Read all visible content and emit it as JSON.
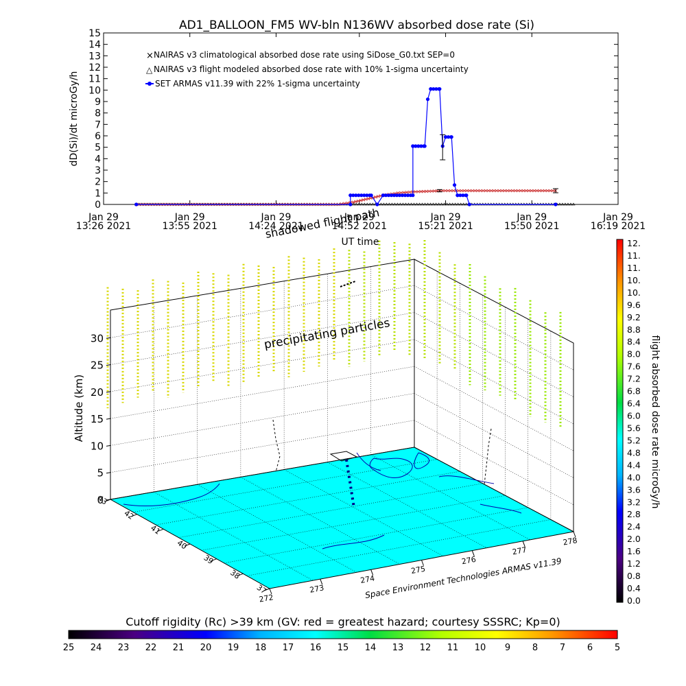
{
  "chart_data": [
    {
      "type": "line",
      "title": "AD1_BALLOON_FM5 WV-bln N136WV absorbed dose rate (Si)",
      "xlabel": "UT time",
      "ylabel": "dD(Si)/dt microGy/h",
      "ylim": [
        0,
        15
      ],
      "yticks": [
        "0",
        "1",
        "2",
        "3",
        "4",
        "5",
        "6",
        "7",
        "8",
        "9",
        "10",
        "11",
        "12",
        "13",
        "14",
        "15"
      ],
      "xlim": [
        "13:26",
        "16:19"
      ],
      "xticks": [
        {
          "t": "13:26",
          "date": "Jan 29",
          "label": "13:26 2021"
        },
        {
          "t": "13:55",
          "date": "Jan 29",
          "label": "13:55 2021"
        },
        {
          "t": "14:24",
          "date": "Jan 29",
          "label": "14:24 2021"
        },
        {
          "t": "14:52",
          "date": "Jan 29",
          "label": "14:52 2021"
        },
        {
          "t": "15:21",
          "date": "Jan 29",
          "label": "15:21 2021"
        },
        {
          "t": "15:50",
          "date": "Jan 29",
          "label": "15:50 2021"
        },
        {
          "t": "16:19",
          "date": "Jan 29",
          "label": "16:19 2021"
        }
      ],
      "legend_position": "top-left",
      "series": [
        {
          "name": "NAIRAS v3 climatological absorbed dose rate using SiDose_G0.txt SEP=0",
          "color": "#cc3333",
          "marker": "x",
          "points": [
            [
              "13:37",
              0.0
            ],
            [
              "14:45",
              0.0
            ],
            [
              "14:50",
              0.2
            ],
            [
              "14:55",
              0.5
            ],
            [
              "15:00",
              0.8
            ],
            [
              "15:05",
              1.0
            ],
            [
              "15:10",
              1.1
            ],
            [
              "15:20",
              1.2
            ],
            [
              "15:40",
              1.2
            ],
            [
              "15:58",
              1.2
            ]
          ],
          "error_bar": {
            "t": "15:19",
            "value": 1.2,
            "sigma": 0.1
          }
        },
        {
          "name": "NAIRAS v3 flight modeled absorbed dose rate with 10% 1-sigma uncertainty",
          "color": "#000000",
          "marker": "triangle",
          "points": [
            [
              "13:37",
              0.0
            ],
            [
              "16:04",
              0.0
            ]
          ]
        },
        {
          "name": "SET ARMAS v11.39 with 22% 1-sigma uncertainty",
          "color": "#0000ff",
          "marker": "dot",
          "points": [
            [
              "13:37",
              0.0
            ],
            [
              "14:49",
              0.0
            ],
            [
              "14:49",
              0.8
            ],
            [
              "14:56",
              0.8
            ],
            [
              "14:58",
              0.0
            ],
            [
              "15:00",
              0.8
            ],
            [
              "15:10",
              0.8
            ],
            [
              "15:10",
              5.1
            ],
            [
              "15:14",
              5.1
            ],
            [
              "15:15",
              9.2
            ],
            [
              "15:16",
              10.1
            ],
            [
              "15:19",
              10.1
            ],
            [
              "15:20",
              5.1
            ],
            [
              "15:21",
              5.9
            ],
            [
              "15:23",
              5.9
            ],
            [
              "15:24",
              1.7
            ],
            [
              "15:25",
              0.8
            ],
            [
              "15:28",
              0.8
            ],
            [
              "15:29",
              0.0
            ],
            [
              "15:58",
              0.0
            ]
          ],
          "error_bar": {
            "t": "15:20",
            "value": 5.0,
            "sigma": 1.1
          }
        }
      ],
      "annotation": "shadowed flight path"
    },
    {
      "type": "scatter",
      "ylabel": "Altitude (km)",
      "zlim": [
        0,
        35
      ],
      "zticks": [
        "0",
        "5",
        "10",
        "15",
        "20",
        "25",
        "30"
      ],
      "lat_ticks": [
        "43",
        "42",
        "41",
        "40",
        "39",
        "38",
        "37"
      ],
      "lon_ticks": [
        "272",
        "273",
        "274",
        "275",
        "276",
        "277",
        "278"
      ],
      "annotations": [
        "precipitating particles"
      ],
      "credit": "Space Environment Technologies ARMAS v11.39",
      "colorbar_right": {
        "label": "flight absorbed dose rate microGy/h",
        "ticks": [
          "0.0",
          "0.4",
          "0.8",
          "1.2",
          "1.6",
          "2.0",
          "2.4",
          "2.8",
          "3.2",
          "3.6",
          "4.0",
          "4.4",
          "4.8",
          "5.2",
          "5.6",
          "6.0",
          "6.4",
          "6.8",
          "7.2",
          "7.6",
          "8.0",
          "8.4",
          "8.8",
          "9.2",
          "9.6",
          "10.",
          "10.",
          "11.",
          "11.",
          "12."
        ]
      },
      "colorbar_bottom": {
        "label": "Cutoff rigidity (Rc) >39 km (GV: red = greatest hazard; courtesy SSSRC; Kp=0)",
        "ticks": [
          "25",
          "24",
          "23",
          "22",
          "21",
          "20",
          "19",
          "18",
          "17",
          "16",
          "15",
          "14",
          "13",
          "12",
          "11",
          "10",
          "9",
          "8",
          "7",
          "6",
          "5"
        ]
      }
    }
  ]
}
